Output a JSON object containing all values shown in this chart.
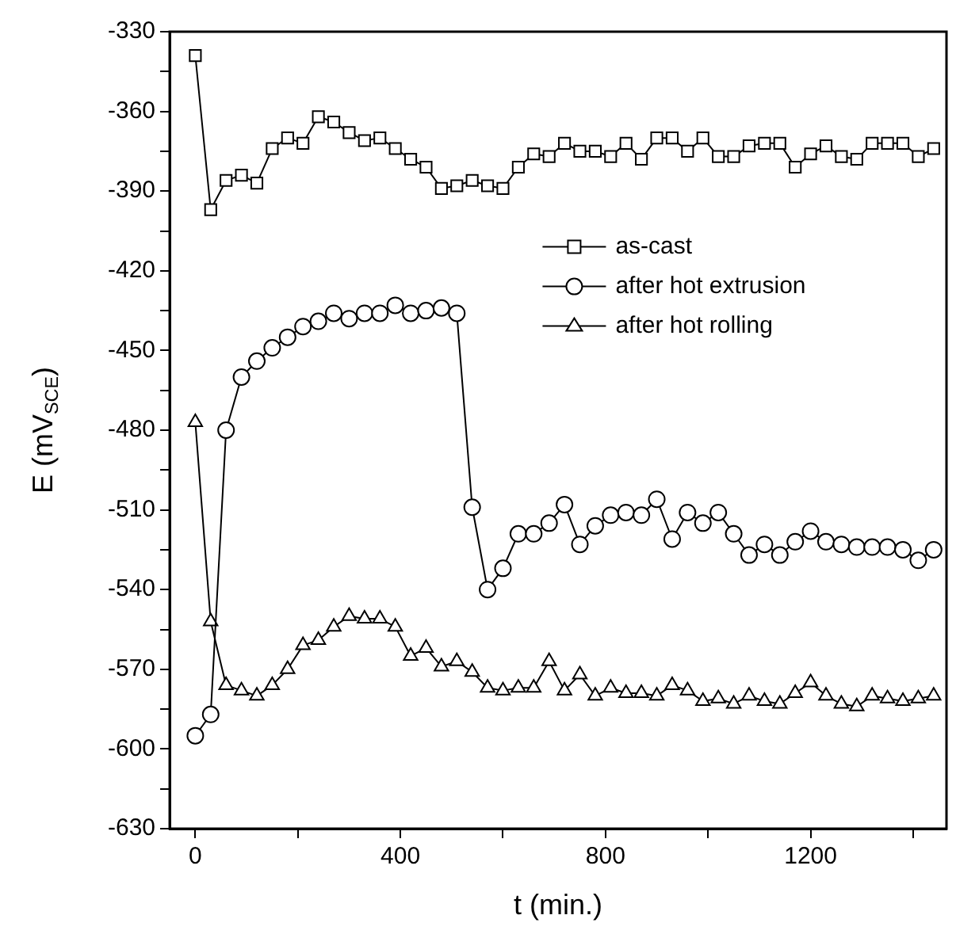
{
  "chart_data": {
    "type": "line",
    "xlabel": "t (min.)",
    "ylabel": "E (mV$_{SCE}$)",
    "x": [
      0,
      30,
      60,
      90,
      120,
      150,
      180,
      210,
      240,
      270,
      300,
      330,
      360,
      390,
      420,
      450,
      480,
      510,
      540,
      570,
      600,
      630,
      660,
      690,
      720,
      750,
      780,
      810,
      840,
      870,
      900,
      930,
      960,
      990,
      1020,
      1050,
      1080,
      1110,
      1140,
      1170,
      1200,
      1230,
      1260,
      1290,
      1320,
      1350,
      1380,
      1410,
      1440
    ],
    "series": [
      {
        "name": "as-cast",
        "color": "#000000",
        "marker": "square",
        "values": [
          -339,
          -397,
          -386,
          -384,
          -387,
          -374,
          -370,
          -372,
          -362,
          -364,
          -368,
          -371,
          -370,
          -374,
          -378,
          -381,
          -389,
          -388,
          -386,
          -388,
          -389,
          -381,
          -376,
          -377,
          -372,
          -375,
          -375,
          -377,
          -372,
          -378,
          -370,
          -370,
          -375,
          -370,
          -377,
          -377,
          -373,
          -372,
          -372,
          -381,
          -376,
          -373,
          -377,
          -378,
          -372,
          -372,
          -372,
          -377,
          -374
        ]
      },
      {
        "name": "after hot extrusion",
        "color": "#000000",
        "marker": "circle",
        "values": [
          -595,
          -587,
          -480,
          -460,
          -454,
          -449,
          -445,
          -441,
          -439,
          -436,
          -438,
          -436,
          -436,
          -433,
          -436,
          -435,
          -434,
          -436,
          -509,
          -540,
          -532,
          -519,
          -519,
          -515,
          -508,
          -523,
          -516,
          -512,
          -511,
          -512,
          -506,
          -521,
          -511,
          -515,
          -511,
          -519,
          -527,
          -523,
          -527,
          -522,
          -518,
          -522,
          -523,
          -524,
          -524,
          -524,
          -525,
          -529,
          -525
        ]
      },
      {
        "name": "after hot rolling",
        "color": "#000000",
        "marker": "triangle",
        "values": [
          -477,
          -552,
          -576,
          -578,
          -580,
          -576,
          -570,
          -561,
          -559,
          -554,
          -550,
          -551,
          -551,
          -554,
          -565,
          -562,
          -569,
          -567,
          -571,
          -577,
          -578,
          -577,
          -577,
          -567,
          -578,
          -572,
          -580,
          -577,
          -579,
          -579,
          -580,
          -576,
          -578,
          -582,
          -581,
          -583,
          -580,
          -582,
          -583,
          -579,
          -575,
          -580,
          -583,
          -584,
          -580,
          -581,
          -582,
          -581,
          -580
        ]
      }
    ],
    "xlim": [
      -50,
      1465
    ],
    "xticks": [
      0,
      {
        "value": 200,
        "label": null
      },
      400,
      {
        "value": 600,
        "label": null
      },
      800,
      {
        "value": 1000,
        "label": null
      },
      1200,
      {
        "value": 1400,
        "label": null
      }
    ],
    "ylim": [
      -630,
      -330
    ],
    "yticks": [
      -630,
      {
        "value": -615,
        "label": null
      },
      -600,
      {
        "value": -585,
        "label": null
      },
      -570,
      {
        "value": -555,
        "label": null
      },
      -540,
      {
        "value": -525,
        "label": null
      },
      -510,
      {
        "value": -495,
        "label": null
      },
      -480,
      {
        "value": -465,
        "label": null
      },
      -450,
      {
        "value": -435,
        "label": null
      },
      -420,
      {
        "value": -405,
        "label": null
      },
      -390,
      {
        "value": -375,
        "label": null
      },
      -360,
      {
        "value": -345,
        "label": null
      },
      -330
    ],
    "grid": false,
    "legend": "right",
    "line_style": "solid"
  }
}
